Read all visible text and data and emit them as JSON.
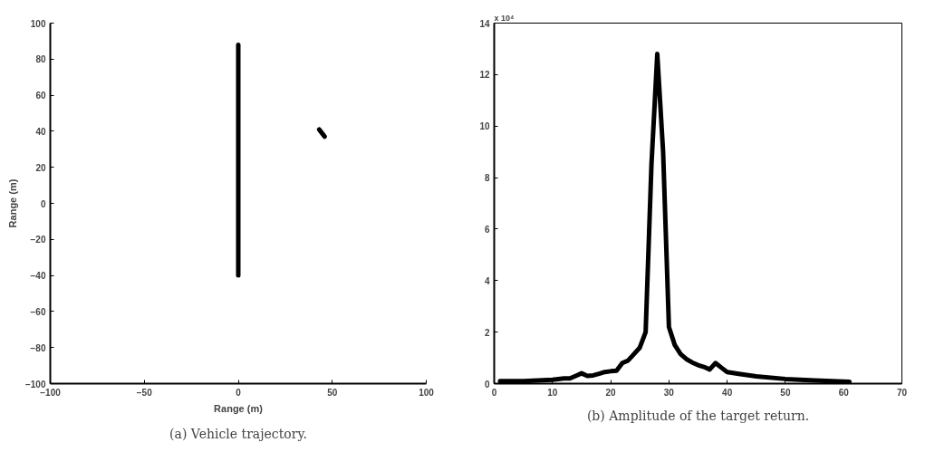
{
  "chart_data": [
    {
      "type": "line",
      "title": "(a) Vehicle trajectory.",
      "xlabel": "Range (m)",
      "ylabel": "Range (m)",
      "xlim": [
        -100,
        100
      ],
      "ylim": [
        -100,
        100
      ],
      "xticks": [
        -100,
        -50,
        0,
        50,
        100
      ],
      "yticks": [
        -100,
        -80,
        -60,
        -40,
        -20,
        0,
        20,
        40,
        60,
        80,
        100
      ],
      "grid": false,
      "series": [
        {
          "color": "#000000",
          "x": [
            0,
            0,
            0
          ],
          "values": [
            -40,
            82,
            88
          ]
        },
        {
          "color": "#000000",
          "x": [
            43,
            44.5,
            46
          ],
          "values": [
            41,
            39,
            37
          ]
        }
      ]
    },
    {
      "type": "line",
      "title": "(b) Amplitude of the target return.",
      "annotations": [
        "x 10⁴"
      ],
      "xlim": [
        0,
        70
      ],
      "ylim": [
        0,
        14
      ],
      "xticks": [
        0,
        10,
        20,
        30,
        40,
        50,
        60,
        70
      ],
      "yticks": [
        0,
        2,
        4,
        6,
        8,
        10,
        12,
        14
      ],
      "grid": false,
      "series": [
        {
          "color": "#000000",
          "x": [
            1,
            5,
            10,
            12,
            13,
            14,
            15,
            16,
            17,
            18,
            19,
            20,
            21,
            22,
            23,
            24,
            25,
            26,
            27,
            28,
            29,
            30,
            31,
            32,
            33,
            34,
            35,
            36,
            37,
            38,
            39,
            40,
            42,
            45,
            50,
            55,
            60,
            61
          ],
          "values": [
            0.1,
            0.1,
            0.15,
            0.2,
            0.2,
            0.3,
            0.4,
            0.3,
            0.32,
            0.38,
            0.45,
            0.48,
            0.5,
            0.8,
            0.9,
            1.15,
            1.4,
            2.0,
            8.5,
            12.8,
            9.0,
            2.2,
            1.5,
            1.15,
            0.95,
            0.82,
            0.72,
            0.65,
            0.55,
            0.8,
            0.62,
            0.45,
            0.38,
            0.28,
            0.18,
            0.12,
            0.08,
            0.07
          ]
        }
      ]
    }
  ]
}
